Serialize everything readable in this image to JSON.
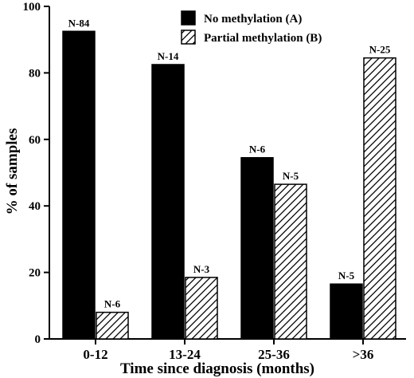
{
  "chart_data": {
    "type": "bar",
    "xlabel": "Time since diagnosis (months)",
    "ylabel": "% of samples",
    "ylim": [
      0,
      100
    ],
    "yticks": [
      0,
      20,
      40,
      60,
      80,
      100
    ],
    "grid": false,
    "legend_position": "top-right",
    "categories": [
      "0-12",
      "13-24",
      "25-36",
      ">36"
    ],
    "series": [
      {
        "name": "No methylation (A)",
        "fill": "solid-black",
        "values": [
          92.5,
          82.5,
          54.5,
          16.5
        ],
        "labels": [
          "N-84",
          "N-14",
          "N-6",
          "N-5"
        ]
      },
      {
        "name": "Partial methylation (B)",
        "fill": "diagonal-hatch",
        "values": [
          8,
          18.5,
          46.5,
          84.5
        ],
        "labels": [
          "N-6",
          "N-3",
          "N-5",
          "N-25"
        ]
      }
    ]
  },
  "colors": {
    "ink": "#000000",
    "paper": "#ffffff"
  }
}
